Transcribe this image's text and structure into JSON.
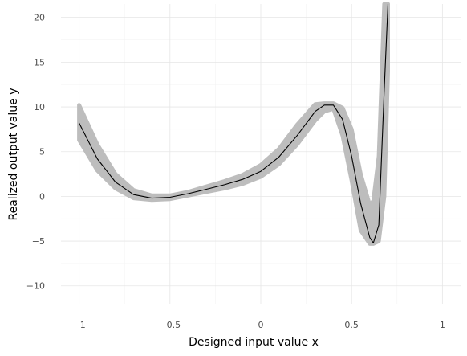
{
  "chart_data": {
    "type": "line",
    "title": "",
    "xlabel": "Designed input value x",
    "ylabel": "Realized output value y",
    "xlim": [
      -1.1,
      1.1
    ],
    "ylim": [
      -12,
      21.5
    ],
    "x_ticks": [
      -1,
      -0.5,
      0,
      0.5,
      1
    ],
    "x_tick_labels": [
      "−1",
      "−0.5",
      "0",
      "0.5",
      "1"
    ],
    "y_ticks": [
      -10,
      -5,
      0,
      5,
      10,
      15,
      20
    ],
    "y_tick_labels": [
      "−10",
      "−5",
      "0",
      "5",
      "10",
      "15",
      "20"
    ],
    "grid": true,
    "legend": "none",
    "series": [
      {
        "role": "mean-line",
        "color": "#000000",
        "x": [
          -1.0,
          -0.9,
          -0.8,
          -0.7,
          -0.6,
          -0.5,
          -0.4,
          -0.3,
          -0.2,
          -0.1,
          0.0,
          0.1,
          0.2,
          0.3,
          0.35,
          0.4,
          0.45,
          0.5,
          0.55,
          0.6,
          0.62,
          0.65,
          0.68,
          0.7
        ],
        "y": [
          8.2,
          4.2,
          1.6,
          0.2,
          -0.2,
          -0.1,
          0.3,
          0.8,
          1.3,
          1.9,
          2.8,
          4.4,
          6.8,
          9.5,
          10.2,
          10.2,
          8.6,
          4.5,
          -0.8,
          -4.6,
          -5.2,
          -3.2,
          12,
          21.5
        ]
      },
      {
        "role": "band",
        "color": "#bdbdbd",
        "x": [
          -1.0,
          -0.9,
          -0.8,
          -0.7,
          -0.6,
          -0.5,
          -0.4,
          -0.3,
          -0.2,
          -0.1,
          0.0,
          0.1,
          0.2,
          0.3,
          0.35,
          0.4,
          0.45,
          0.5,
          0.55,
          0.6,
          0.62,
          0.65,
          0.68,
          0.7
        ],
        "y_lower": [
          6.3,
          2.9,
          0.9,
          -0.2,
          -0.4,
          -0.3,
          0.1,
          0.5,
          0.9,
          1.4,
          2.2,
          3.6,
          5.8,
          8.5,
          9.5,
          9.8,
          6.8,
          1.8,
          -3.8,
          -5.3,
          -5.3,
          -5.0,
          0,
          14
        ],
        "y_upper": [
          10.2,
          5.8,
          2.5,
          0.7,
          0.1,
          0.1,
          0.5,
          1.1,
          1.7,
          2.4,
          3.5,
          5.3,
          8.0,
          10.3,
          10.4,
          10.4,
          9.9,
          7.5,
          2.5,
          -1.0,
          -0.5,
          4.5,
          21.5,
          21.5
        ]
      }
    ]
  }
}
